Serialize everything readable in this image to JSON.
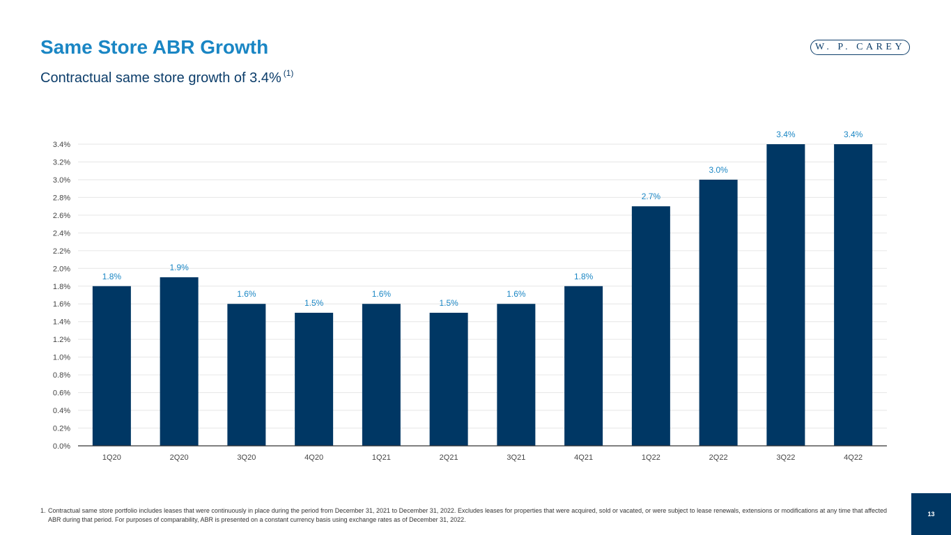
{
  "header": {
    "title": "Same Store ABR Growth",
    "subtitle": "Contractual same store growth of 3.4%",
    "subtitle_footnote_ref": "(1)",
    "logo_text": "W. P. CAREY"
  },
  "chart_data": {
    "type": "bar",
    "categories": [
      "1Q20",
      "2Q20",
      "3Q20",
      "4Q20",
      "1Q21",
      "2Q21",
      "3Q21",
      "4Q21",
      "1Q22",
      "2Q22",
      "3Q22",
      "4Q22"
    ],
    "values": [
      1.8,
      1.9,
      1.6,
      1.5,
      1.6,
      1.5,
      1.6,
      1.8,
      2.7,
      3.0,
      3.4,
      3.4
    ],
    "data_labels": [
      "1.8%",
      "1.9%",
      "1.6%",
      "1.5%",
      "1.6%",
      "1.5%",
      "1.6%",
      "1.8%",
      "2.7%",
      "3.0%",
      "3.4%",
      "3.4%"
    ],
    "yticks": [
      "0.0%",
      "0.2%",
      "0.4%",
      "0.6%",
      "0.8%",
      "1.0%",
      "1.2%",
      "1.4%",
      "1.6%",
      "1.8%",
      "2.0%",
      "2.2%",
      "2.4%",
      "2.6%",
      "2.8%",
      "3.0%",
      "3.2%",
      "3.4%"
    ],
    "ylim": [
      0,
      3.4
    ],
    "ytick_step": 0.2,
    "grid": true,
    "legend": "none",
    "title": "",
    "xlabel": "",
    "ylabel": "",
    "colors": {
      "bar": "#003764",
      "label": "#1a86c4"
    }
  },
  "footnote": {
    "number": "1.",
    "text": "Contractual same store portfolio includes leases that were continuously in place during the period from December 31, 2021 to December 31, 2022. Excludes leases for properties that were acquired, sold or vacated, or were subject to lease renewals, extensions or modifications at any time that affected ABR during that period. For purposes of comparability, ABR is presented on a constant currency basis using exchange rates as of December 31, 2022."
  },
  "page_number": "13"
}
